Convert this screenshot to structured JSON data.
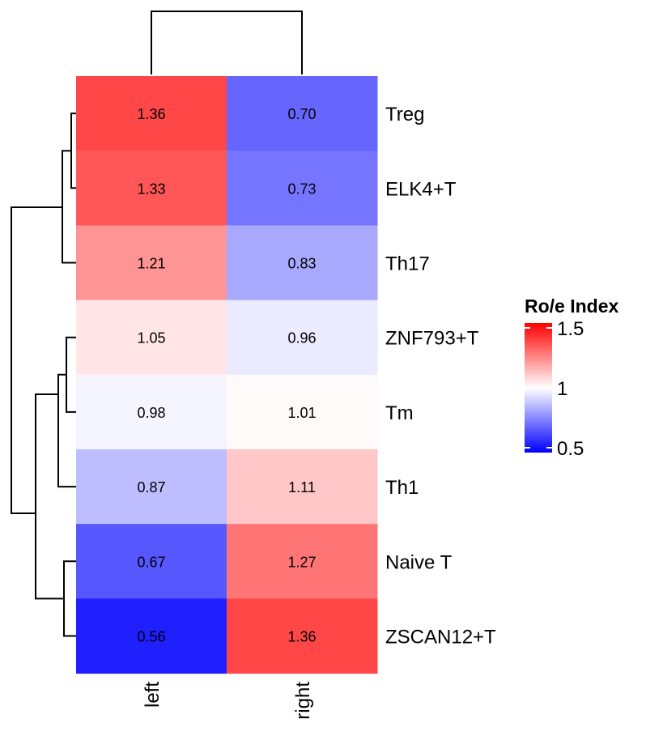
{
  "chart_data": {
    "type": "heatmap",
    "title": "",
    "columns": [
      "left",
      "right"
    ],
    "rows": [
      "Treg",
      "ELK4+T",
      "Th17",
      "ZNF793+T",
      "Tm",
      "Th1",
      "Naive T",
      "ZSCAN12+T"
    ],
    "values": [
      [
        1.36,
        0.7
      ],
      [
        1.33,
        0.73
      ],
      [
        1.21,
        0.83
      ],
      [
        1.05,
        0.96
      ],
      [
        0.98,
        1.01
      ],
      [
        0.87,
        1.11
      ],
      [
        0.67,
        1.27
      ],
      [
        0.56,
        1.36
      ]
    ],
    "value_labels": [
      [
        "1.36",
        "0.70"
      ],
      [
        "1.33",
        "0.73"
      ],
      [
        "1.21",
        "0.83"
      ],
      [
        "1.05",
        "0.96"
      ],
      [
        "0.98",
        "1.01"
      ],
      [
        "0.87",
        "1.11"
      ],
      [
        "0.67",
        "1.27"
      ],
      [
        "0.56",
        "1.36"
      ]
    ],
    "legend": {
      "title": "Ro/e Index",
      "range": [
        0.5,
        1.5
      ],
      "midpoint": 1.0,
      "ticks": [
        "1.5",
        "1",
        "0.5"
      ],
      "tick_values": [
        1.5,
        1.0,
        0.5
      ],
      "colors": {
        "low": "#0000ff",
        "mid": "#ffffff",
        "high": "#ff0000"
      },
      "placement": "right"
    },
    "column_dendrogram": true,
    "row_dendrogram": true
  }
}
